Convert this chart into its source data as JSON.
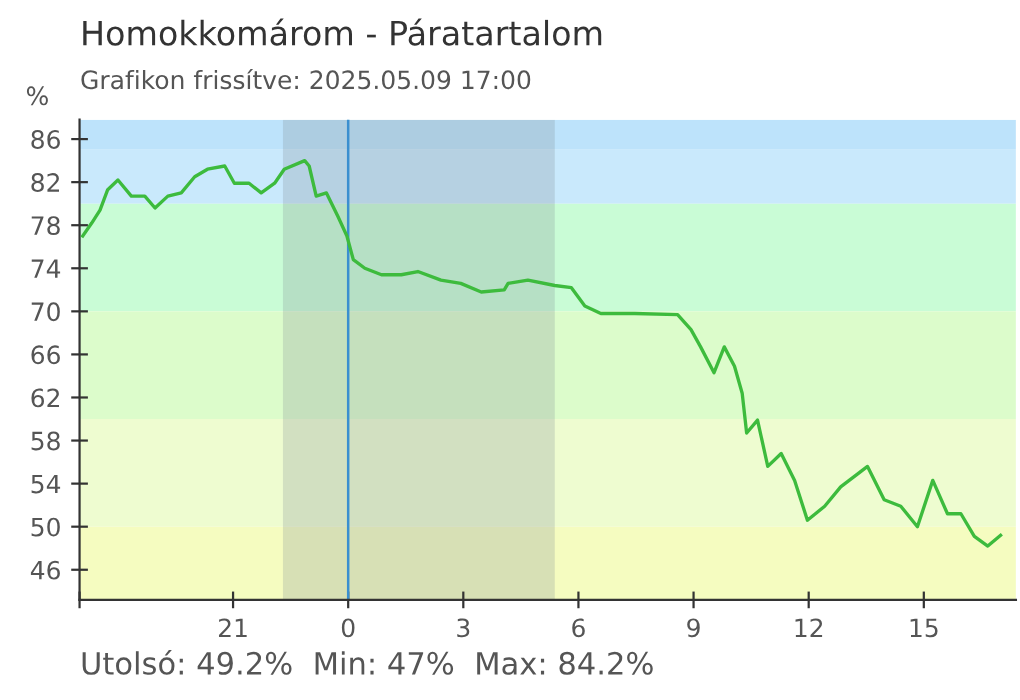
{
  "chart_data": {
    "type": "line",
    "title": "Homokkomárom - Páratartalom",
    "subtitle": "Grafikon frissítve: 2025.05.09 17:00",
    "ylabel": "%",
    "annotations": [
      "Utolsó: 49.2%  Min: 47%  Max: 84.2%"
    ],
    "x": [
      "2025-05-08T17:05",
      "2025-05-08T17:19",
      "2025-05-08T17:32",
      "2025-05-08T17:44",
      "2025-05-08T18:00",
      "2025-05-08T18:21",
      "2025-05-08T18:42",
      "2025-05-08T18:58",
      "2025-05-08T19:18",
      "2025-05-08T19:39",
      "2025-05-08T20:00",
      "2025-05-08T20:20",
      "2025-05-08T20:47",
      "2025-05-08T21:02",
      "2025-05-08T21:25",
      "2025-05-08T21:44",
      "2025-05-08T22:05",
      "2025-05-08T22:20",
      "2025-05-08T22:52",
      "2025-05-08T22:59",
      "2025-05-08T23:10",
      "2025-05-08T23:26",
      "2025-05-08T23:44",
      "2025-05-08T23:58",
      "2025-05-09T00:08",
      "2025-05-09T00:26",
      "2025-05-09T00:52",
      "2025-05-09T01:23",
      "2025-05-09T01:49",
      "2025-05-09T02:25",
      "2025-05-09T02:56",
      "2025-05-09T03:28",
      "2025-05-09T04:04",
      "2025-05-09T04:10",
      "2025-05-09T04:41",
      "2025-05-09T05:23",
      "2025-05-09T05:49",
      "2025-05-09T06:10",
      "2025-05-09T06:35",
      "2025-05-09T07:28",
      "2025-05-09T08:35",
      "2025-05-09T08:56",
      "2025-05-09T09:11",
      "2025-05-09T09:32",
      "2025-05-09T09:48",
      "2025-05-09T10:04",
      "2025-05-09T10:16",
      "2025-05-09T10:23",
      "2025-05-09T10:40",
      "2025-05-09T10:56",
      "2025-05-09T11:17",
      "2025-05-09T11:38",
      "2025-05-09T11:58",
      "2025-05-09T12:25",
      "2025-05-09T12:50",
      "2025-05-09T13:32",
      "2025-05-09T13:58",
      "2025-05-09T14:24",
      "2025-05-09T14:50",
      "2025-05-09T15:14",
      "2025-05-09T15:37",
      "2025-05-09T15:58",
      "2025-05-09T16:19",
      "2025-05-09T16:40",
      "2025-05-09T17:00"
    ],
    "series": [
      {
        "color": "#3dbb3d",
        "values": [
          77.0,
          78.2,
          79.4,
          81.3,
          82.2,
          80.7,
          80.7,
          79.6,
          80.7,
          81.0,
          82.5,
          83.2,
          83.5,
          81.9,
          81.9,
          81.0,
          81.9,
          83.2,
          84.0,
          83.5,
          80.7,
          81.0,
          78.8,
          77.0,
          74.8,
          74.0,
          73.4,
          73.4,
          73.7,
          72.9,
          72.6,
          71.8,
          72.0,
          72.6,
          72.9,
          72.4,
          72.2,
          70.5,
          69.8,
          69.8,
          69.7,
          68.3,
          66.7,
          64.3,
          66.7,
          64.9,
          62.4,
          58.7,
          59.9,
          55.6,
          56.8,
          54.3,
          50.6,
          51.9,
          53.7,
          55.6,
          52.5,
          51.9,
          50.0,
          54.3,
          51.2,
          51.2,
          49.1,
          48.2,
          49.2
        ]
      }
    ],
    "xlim": [
      "2025-05-08T17:00",
      "2025-05-09T17:24"
    ],
    "ylim": [
      43.2,
      87.8
    ],
    "xticks": [
      {
        "value": "2025-05-08T17:00",
        "label": null
      },
      {
        "value": "2025-05-08T21:00",
        "label": "21"
      },
      {
        "value": "2025-05-09T00:00",
        "label": "0"
      },
      {
        "value": "2025-05-09T03:00",
        "label": "3"
      },
      {
        "value": "2025-05-09T06:00",
        "label": "6"
      },
      {
        "value": "2025-05-09T09:00",
        "label": "9"
      },
      {
        "value": "2025-05-09T12:00",
        "label": "12"
      },
      {
        "value": "2025-05-09T15:00",
        "label": "15"
      }
    ],
    "yticks": [
      46,
      50,
      54,
      58,
      62,
      66,
      70,
      74,
      78,
      82,
      86
    ],
    "bands": [
      {
        "axis": "y",
        "from": 85,
        "to": 87.8,
        "color": "#bde3fb"
      },
      {
        "axis": "y",
        "from": 80,
        "to": 85,
        "color": "#c9e9fc"
      },
      {
        "axis": "y",
        "from": 70,
        "to": 80,
        "color": "#c9fcd6"
      },
      {
        "axis": "y",
        "from": 60,
        "to": 70,
        "color": "#dcfccb"
      },
      {
        "axis": "y",
        "from": 50,
        "to": 60,
        "color": "#eefcd0"
      },
      {
        "axis": "y",
        "from": 43.2,
        "to": 50,
        "color": "#f5fcc0"
      },
      {
        "axis": "x",
        "from": "2025-05-08T22:18",
        "to": "2025-05-09T05:23",
        "color": "#7f8a94"
      }
    ],
    "ref_lines": [
      {
        "axis": "x",
        "value": "2025-05-09T00:00",
        "color": "#3a8fd0"
      }
    ],
    "grid": false,
    "legend": false,
    "marker": "none",
    "line_style": "solid"
  }
}
